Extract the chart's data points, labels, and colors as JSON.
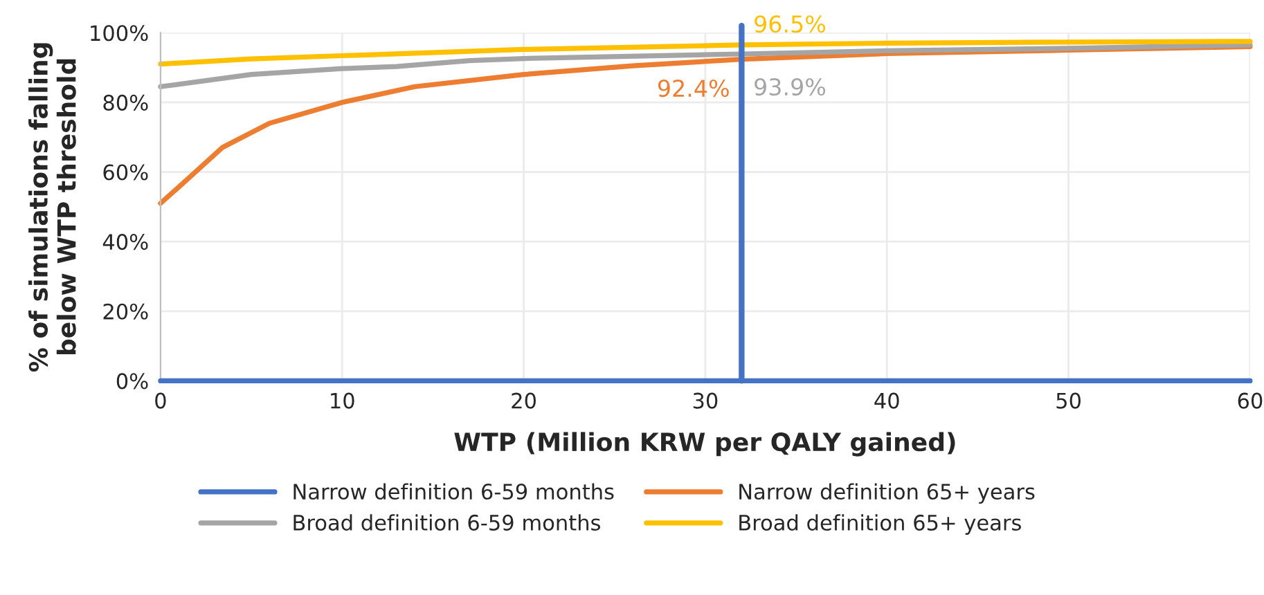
{
  "chart_data": {
    "type": "line",
    "xlabel": "WTP (Million KRW per QALY gained)",
    "ylabel": "% of simulations falling below WTP threshold",
    "xlim": [
      0,
      60
    ],
    "xticks": [
      0,
      10,
      20,
      30,
      40,
      50,
      60
    ],
    "ylim": [
      0,
      100
    ],
    "yticks": [
      {
        "value": 0,
        "label": "0%"
      },
      {
        "value": 20,
        "label": "20%"
      },
      {
        "value": 40,
        "label": "40%"
      },
      {
        "value": 60,
        "label": "60%"
      },
      {
        "value": 80,
        "label": "80%"
      },
      {
        "value": 100,
        "label": "100%"
      }
    ],
    "grid": true,
    "legend": "bottom",
    "marker": "none",
    "line_style": "solid",
    "series": [
      {
        "name": "Narrow definition 6-59 months",
        "color": "#4472c4",
        "x": [
          0,
          10,
          20,
          30,
          40,
          50,
          60
        ],
        "values": [
          0,
          0,
          0,
          0,
          0,
          0,
          0
        ]
      },
      {
        "name": "Narrow definition 65+ years",
        "color": "#ed7d31",
        "x": [
          0,
          1.5,
          3.4,
          6,
          10,
          14,
          20,
          26,
          32,
          40,
          50,
          60
        ],
        "values": [
          51,
          58,
          67,
          74,
          80,
          84.5,
          88,
          90.5,
          92.4,
          94,
          95,
          96
        ],
        "value_labels": [
          null,
          null,
          null,
          null,
          null,
          null,
          null,
          null,
          "92.4%",
          null,
          null,
          null
        ]
      },
      {
        "name": "Broad definition 6-59 months",
        "color": "#a5a5a5",
        "x": [
          0,
          5,
          10,
          13,
          17,
          20,
          32,
          40,
          50,
          60
        ],
        "values": [
          84.5,
          88,
          89.7,
          90.3,
          92,
          92.6,
          93.9,
          94.8,
          95.5,
          96.5
        ],
        "value_labels": [
          null,
          null,
          null,
          null,
          null,
          null,
          "93.9%",
          null,
          null,
          null
        ]
      },
      {
        "name": "Broad definition 65+ years",
        "color": "#ffc000",
        "x": [
          0,
          5,
          10,
          20,
          32,
          40,
          50,
          60
        ],
        "values": [
          91,
          92.5,
          93.4,
          95.2,
          96.5,
          97,
          97.3,
          97.5
        ],
        "value_labels": [
          null,
          null,
          null,
          null,
          "96.5%",
          null,
          null,
          null
        ]
      }
    ],
    "ref_lines": [
      {
        "axis": "x",
        "value": 32,
        "color": "#4472c4"
      }
    ]
  }
}
